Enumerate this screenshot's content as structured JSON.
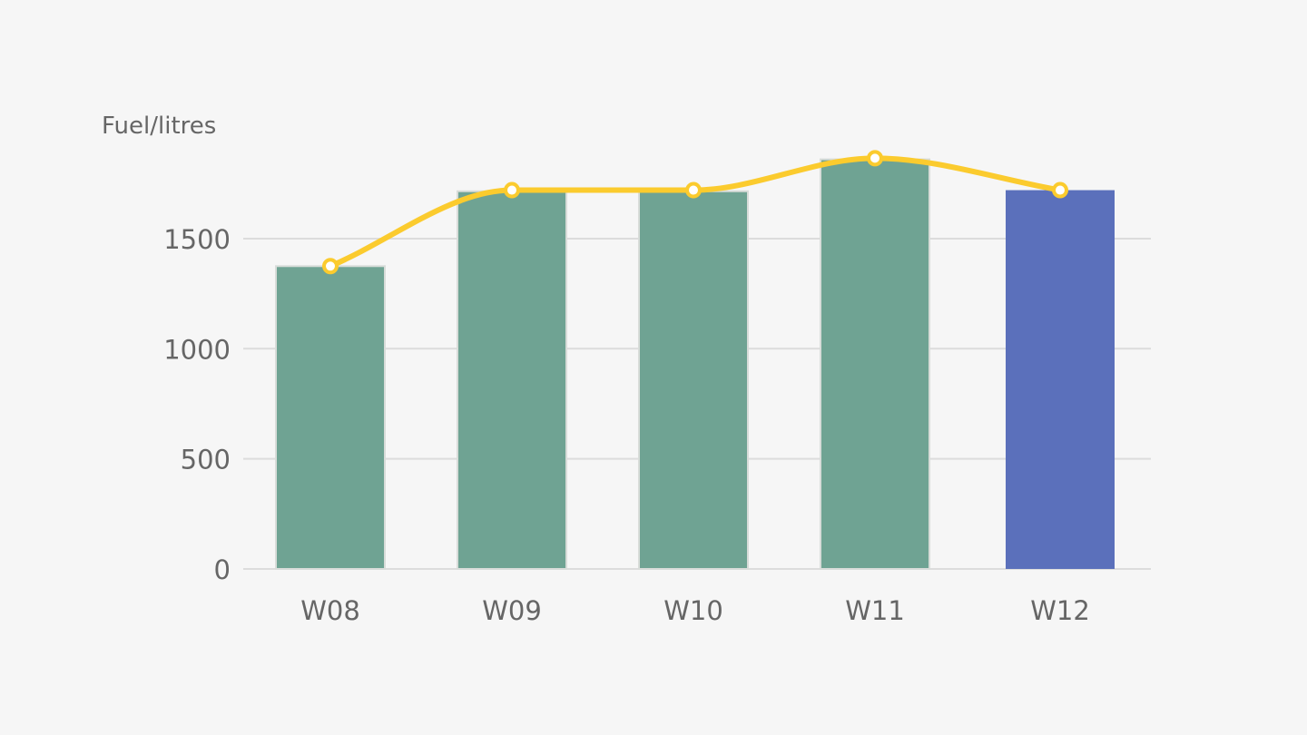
{
  "chart_data": {
    "type": "bar",
    "ylabel": "Fuel/litres",
    "xlabel": "",
    "categories": [
      "W08",
      "W09",
      "W10",
      "W11",
      "W12"
    ],
    "values": [
      1375,
      1715,
      1715,
      1860,
      1720
    ],
    "line_values": [
      1375,
      1720,
      1720,
      1865,
      1720
    ],
    "yticks": [
      0,
      500,
      1000,
      1500
    ],
    "ytick_labels": [
      "0",
      "500",
      "1000",
      "1500"
    ],
    "ylim": [
      0,
      2000
    ],
    "grid": true,
    "highlight_index": 4,
    "colors": {
      "bar": "#6fa393",
      "bar_highlight": "#5b70bb",
      "bar_border": "#d8dcd9",
      "line": "#fbcb2e",
      "point_fill": "#ffffff",
      "grid": "#dcdcdc",
      "text": "#666666",
      "background": "#f6f6f6"
    }
  }
}
